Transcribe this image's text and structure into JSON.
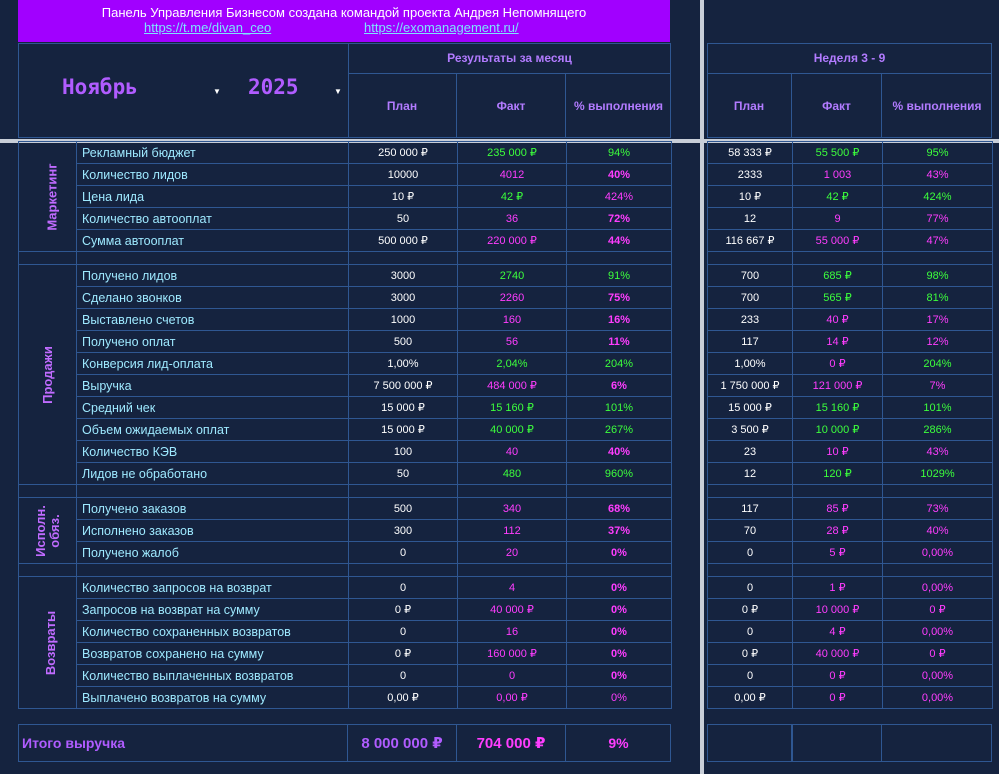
{
  "banner": {
    "text": "Панель Управления Бизнесом создана командой проекта Андрея Непомнящего",
    "link1": "https://t.me/divan_ceo",
    "link2": "https://exomanagement.ru/"
  },
  "selectors": {
    "month": "Ноябрь",
    "year": "2025"
  },
  "month_header": {
    "title": "Результаты за месяц",
    "plan": "План",
    "fact": "Факт",
    "pct": "% выполнения"
  },
  "week_header": {
    "title": "Неделя 3 - 9",
    "plan": "План",
    "fact": "Факт",
    "pct": "% выполнения"
  },
  "groups": {
    "marketing": "Маркетинг",
    "sales": "Продажи",
    "exec_line1": "Исполн.",
    "exec_line2": "обяз.",
    "returns": "Возвраты"
  },
  "rows": [
    {
      "label": "Рекламный бюджет",
      "plan": "250 000 ₽",
      "fact": "235 000 ₽",
      "pct": "94%",
      "wplan": "58 333 ₽",
      "wfact": "55 500 ₽",
      "wpct": "95%"
    },
    {
      "label": "Количество лидов",
      "plan": "10000",
      "fact": "4012",
      "pct": "40%",
      "wplan": "2333",
      "wfact": "1 003",
      "wpct": "43%"
    },
    {
      "label": "Цена лида",
      "plan": "10 ₽",
      "fact": "42 ₽",
      "pct": "424%",
      "wplan": "10 ₽",
      "wfact": "42 ₽",
      "wpct": "424%"
    },
    {
      "label": "Количество автооплат",
      "plan": "50",
      "fact": "36",
      "pct": "72%",
      "wplan": "12",
      "wfact": "9",
      "wpct": "77%"
    },
    {
      "label": "Сумма автооплат",
      "plan": "500 000 ₽",
      "fact": "220 000 ₽",
      "pct": "44%",
      "wplan": "116 667 ₽",
      "wfact": "55 000 ₽",
      "wpct": "47%"
    },
    {
      "label": "Получено лидов",
      "plan": "3000",
      "fact": "2740",
      "pct": "91%",
      "wplan": "700",
      "wfact": "685 ₽",
      "wpct": "98%"
    },
    {
      "label": "Сделано звонков",
      "plan": "3000",
      "fact": "2260",
      "pct": "75%",
      "wplan": "700",
      "wfact": "565 ₽",
      "wpct": "81%"
    },
    {
      "label": "Выставлено счетов",
      "plan": "1000",
      "fact": "160",
      "pct": "16%",
      "wplan": "233",
      "wfact": "40 ₽",
      "wpct": "17%"
    },
    {
      "label": "Получено оплат",
      "plan": "500",
      "fact": "56",
      "pct": "11%",
      "wplan": "117",
      "wfact": "14 ₽",
      "wpct": "12%"
    },
    {
      "label": "Конверсия лид-оплата",
      "plan": "1,00%",
      "fact": "2,04%",
      "pct": "204%",
      "wplan": "1,00%",
      "wfact": "0 ₽",
      "wpct": "204%"
    },
    {
      "label": "Выручка",
      "plan": "7 500 000 ₽",
      "fact": "484 000 ₽",
      "pct": "6%",
      "wplan": "1 750 000 ₽",
      "wfact": "121 000 ₽",
      "wpct": "7%"
    },
    {
      "label": "Средний чек",
      "plan": "15 000 ₽",
      "fact": "15 160 ₽",
      "pct": "101%",
      "wplan": "15 000 ₽",
      "wfact": "15 160 ₽",
      "wpct": "101%"
    },
    {
      "label": "Объем ожидаемых оплат",
      "plan": "15 000 ₽",
      "fact": "40 000 ₽",
      "pct": "267%",
      "wplan": "3 500 ₽",
      "wfact": "10 000 ₽",
      "wpct": "286%"
    },
    {
      "label": "Количество КЭВ",
      "plan": "100",
      "fact": "40",
      "pct": "40%",
      "wplan": "23",
      "wfact": "10 ₽",
      "wpct": "43%"
    },
    {
      "label": "Лидов не обработано",
      "plan": "50",
      "fact": "480",
      "pct": "960%",
      "wplan": "12",
      "wfact": "120 ₽",
      "wpct": "1029%"
    },
    {
      "label": "Получено заказов",
      "plan": "500",
      "fact": "340",
      "pct": "68%",
      "wplan": "117",
      "wfact": "85 ₽",
      "wpct": "73%"
    },
    {
      "label": "Исполнено заказов",
      "plan": "300",
      "fact": "112",
      "pct": "37%",
      "wplan": "70",
      "wfact": "28 ₽",
      "wpct": "40%"
    },
    {
      "label": "Получено жалоб",
      "plan": "0",
      "fact": "20",
      "pct": "0%",
      "wplan": "0",
      "wfact": "5 ₽",
      "wpct": "0,00%"
    },
    {
      "label": "Количество запросов на возврат",
      "plan": "0",
      "fact": "4",
      "pct": "0%",
      "wplan": "0",
      "wfact": "1 ₽",
      "wpct": "0,00%"
    },
    {
      "label": "Запросов на возврат на сумму",
      "plan": "0 ₽",
      "fact": "40 000 ₽",
      "pct": "0%",
      "wplan": "0 ₽",
      "wfact": "10 000 ₽",
      "wpct": "0 ₽"
    },
    {
      "label": "Количество сохраненных возвратов",
      "plan": "0",
      "fact": "16",
      "pct": "0%",
      "wplan": "0",
      "wfact": "4 ₽",
      "wpct": "0,00%"
    },
    {
      "label": "Возвратов сохранено на сумму",
      "plan": "0 ₽",
      "fact": "160 000 ₽",
      "pct": "0%",
      "wplan": "0 ₽",
      "wfact": "40 000 ₽",
      "wpct": "0 ₽"
    },
    {
      "label": "Количество выплаченных возвратов",
      "plan": "0",
      "fact": "0",
      "pct": "0%",
      "wplan": "0",
      "wfact": "0 ₽",
      "wpct": "0,00%"
    },
    {
      "label": "Выплачено возвратов на сумму",
      "plan": "0,00 ₽",
      "fact": "0,00 ₽",
      "pct": "0%",
      "wplan": "0,00 ₽",
      "wfact": "0 ₽",
      "wpct": "0,00%"
    }
  ],
  "total": {
    "label": "Итого выручка",
    "plan": "8 000 000 ₽",
    "fact": "704 000 ₽",
    "pct": "9%"
  },
  "colors": {
    "background": "#15233f",
    "banner": "#a100ff",
    "accent_purple": "#b05cff",
    "label_cyan": "#9ee9ff",
    "green": "#3cff3c",
    "pink": "#ff3dff",
    "border": "#2f5792"
  }
}
